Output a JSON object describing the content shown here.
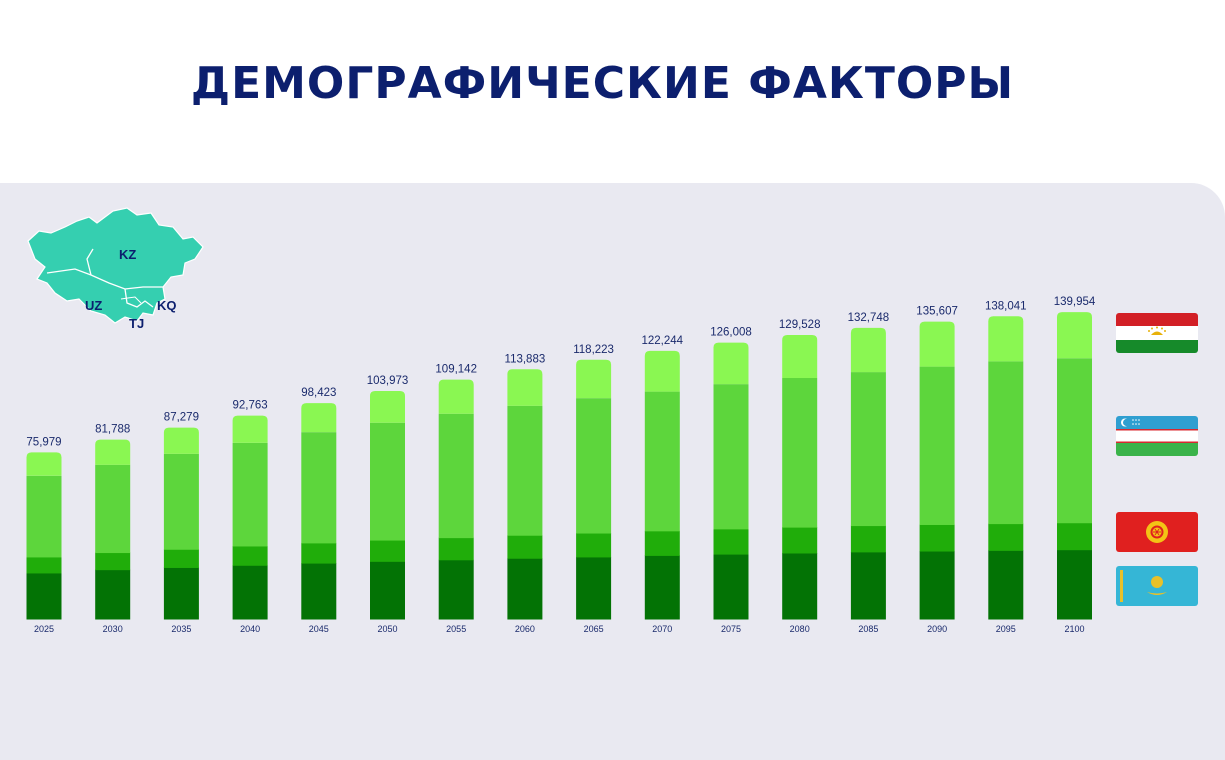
{
  "title": "ДЕМОГРАФИЧЕСКИЕ ФАКТОРЫ",
  "map": {
    "labels": {
      "kz": "KZ",
      "uz": "UZ",
      "kq": "KQ",
      "tj": "TJ"
    },
    "fill_color": "#35cfb0"
  },
  "legend_flags": [
    {
      "icon": "tajikistan-flag"
    },
    {
      "icon": "uzbekistan-flag"
    },
    {
      "icon": "kyrgyzstan-flag"
    },
    {
      "icon": "kazakhstan-flag"
    }
  ],
  "chart_data": {
    "type": "bar",
    "stacked": true,
    "categories": [
      "2025",
      "2030",
      "2035",
      "2040",
      "2045",
      "2050",
      "2055",
      "2060",
      "2065",
      "2070",
      "2075",
      "2080",
      "2085",
      "2090",
      "2095",
      "2100"
    ],
    "totals": [
      75979,
      81788,
      87279,
      92763,
      98423,
      103973,
      109142,
      113883,
      118223,
      122244,
      126008,
      129528,
      132748,
      135607,
      138041,
      139954
    ],
    "total_labels": [
      "75,979",
      "81,788",
      "87,279",
      "92,763",
      "98,423",
      "103,973",
      "109,142",
      "113,883",
      "118,223",
      "122,244",
      "126,008",
      "129,528",
      "132,748",
      "135,607",
      "138,041",
      "139,954"
    ],
    "series": [
      {
        "color": "#037305",
        "values": [
          21000,
          22500,
          23500,
          24500,
          25500,
          26300,
          27000,
          27700,
          28300,
          29000,
          29600,
          30100,
          30600,
          31000,
          31300,
          31600
        ]
      },
      {
        "color": "#20ad0a",
        "values": [
          7300,
          7800,
          8300,
          8800,
          9200,
          9700,
          10100,
          10500,
          10900,
          11200,
          11500,
          11800,
          12000,
          12100,
          12200,
          12300
        ]
      },
      {
        "color": "#5dd63c",
        "values": [
          37000,
          40000,
          43500,
          47000,
          50500,
          53500,
          56500,
          59000,
          61500,
          63500,
          66000,
          68000,
          70000,
          72000,
          74000,
          75000
        ]
      },
      {
        "color": "#8af752",
        "values": [
          10679,
          11488,
          11979,
          12463,
          13223,
          14473,
          15542,
          16683,
          17523,
          18544,
          18908,
          19628,
          20148,
          20507,
          20541,
          21054
        ]
      }
    ],
    "ylim": [
      0,
      140000
    ],
    "grid": false,
    "legend": "right"
  }
}
